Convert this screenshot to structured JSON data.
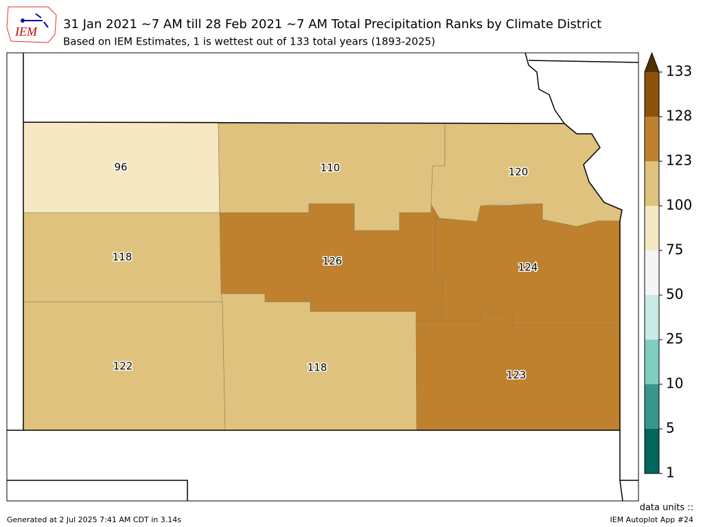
{
  "logo": "IEM",
  "title": "31 Jan 2021 ~7 AM till 28 Feb 2021 ~7 AM Total Precipitation Ranks by Climate District",
  "subtitle": "Based on IEM Estimates, 1 is wettest out of 133 total years (1893-2025)",
  "colorbar": {
    "ticks": [
      1,
      5,
      10,
      25,
      50,
      75,
      100,
      123,
      128,
      133
    ],
    "colors": [
      "#01665e",
      "#35978f",
      "#80cdc1",
      "#c7eae5",
      "#f5f5f5",
      "#f6e8c3",
      "#dfc27d",
      "#bf812d",
      "#8c510a"
    ],
    "over_color": "#543005"
  },
  "districts": [
    {
      "rank": 96
    },
    {
      "rank": 110
    },
    {
      "rank": 120
    },
    {
      "rank": 118
    },
    {
      "rank": 126
    },
    {
      "rank": 124
    },
    {
      "rank": 122
    },
    {
      "rank": 118
    },
    {
      "rank": 123
    }
  ],
  "footer": {
    "generated": "Generated at 2 Jul 2025 7:41 AM CDT in 3.14s",
    "units": "data units ::",
    "app": "IEM Autoplot App #24"
  }
}
